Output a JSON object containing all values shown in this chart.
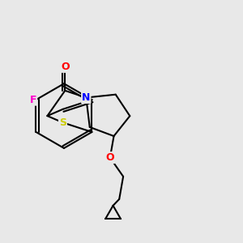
{
  "bg_color": "#e8e8e8",
  "atom_colors": {
    "F": "#ff00cc",
    "S": "#cccc00",
    "O": "#ff0000",
    "N": "#0000ff",
    "C": "#000000"
  },
  "bond_color": "#000000",
  "bond_width": 1.5,
  "figsize": [
    3.0,
    3.0
  ],
  "dpi": 100
}
